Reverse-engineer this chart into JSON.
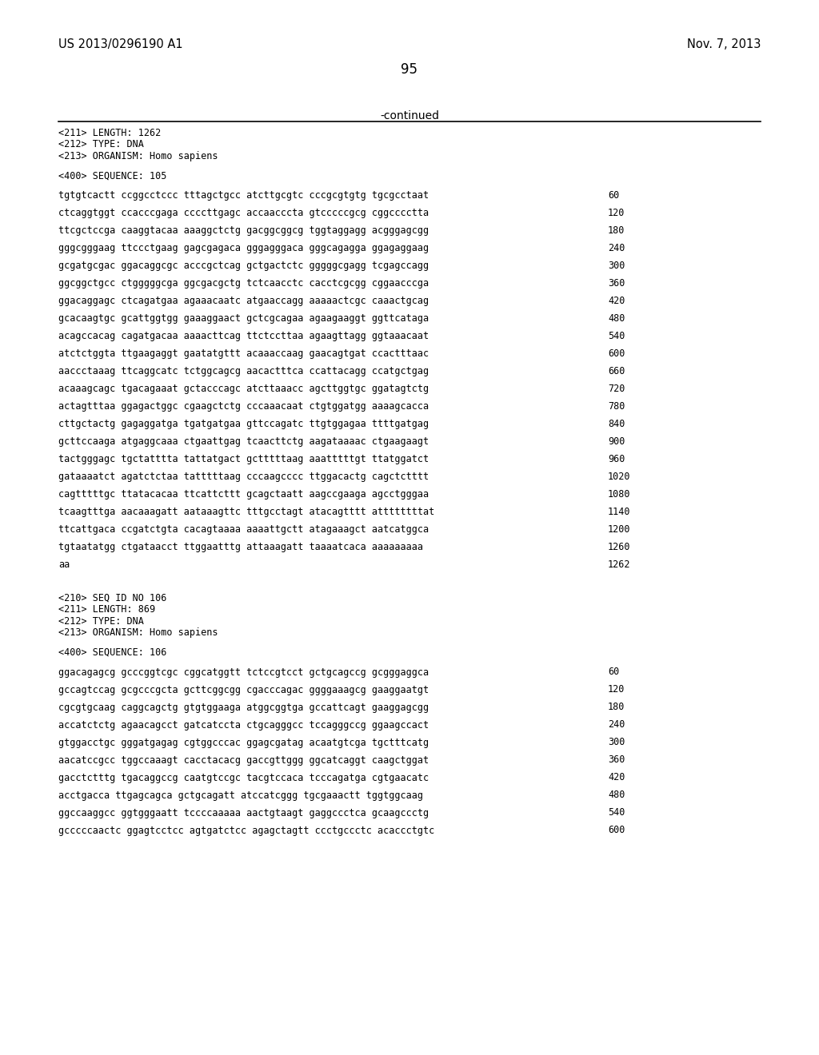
{
  "background_color": "#ffffff",
  "header_left": "US 2013/0296190 A1",
  "header_right": "Nov. 7, 2013",
  "page_number": "95",
  "continued_label": "-continued",
  "meta_lines_105": [
    "<211> LENGTH: 1262",
    "<212> TYPE: DNA",
    "<213> ORGANISM: Homo sapiens",
    "",
    "<400> SEQUENCE: 105"
  ],
  "sequence_lines_105": [
    [
      "tgtgtcactt ccggcctccc tttagctgcc atcttgcgtc cccgcgtgtg tgcgcctaat",
      "60"
    ],
    [
      "ctcaggtggt ccacccgaga ccccttgagc accaacccta gtcccccgcg cggcccctta",
      "120"
    ],
    [
      "ttcgctccga caaggtacaa aaaggctctg gacggcggcg tggtaggagg acgggagcgg",
      "180"
    ],
    [
      "gggcgggaag ttccctgaag gagcgagaca gggagggaca gggcagagga ggagaggaag",
      "240"
    ],
    [
      "gcgatgcgac ggacaggcgc acccgctcag gctgactctc gggggcgagg tcgagccagg",
      "300"
    ],
    [
      "ggcggctgcc ctgggggcga ggcgacgctg tctcaacctc cacctcgcgg cggaacccga",
      "360"
    ],
    [
      "ggacaggagc ctcagatgaa agaaacaatc atgaaccagg aaaaactcgc caaactgcag",
      "420"
    ],
    [
      "gcacaagtgc gcattggtgg gaaaggaact gctcgcagaa agaagaaggt ggttcataga",
      "480"
    ],
    [
      "acagccacag cagatgacaa aaaacttcag ttctccttaa agaagttagg ggtaaacaat",
      "540"
    ],
    [
      "atctctggta ttgaagaggt gaatatgttt acaaaccaag gaacagtgat ccactttaac",
      "600"
    ],
    [
      "aaccctaaag ttcaggcatc tctggcagcg aacactttca ccattacagg ccatgctgag",
      "660"
    ],
    [
      "acaaagcagc tgacagaaat gctacccagc atcttaaacc agcttggtgc ggatagtctg",
      "720"
    ],
    [
      "actagtttaa ggagactggc cgaagctctg cccaaacaat ctgtggatgg aaaagcacca",
      "780"
    ],
    [
      "cttgctactg gagaggatga tgatgatgaa gttccagatc ttgtggagaa ttttgatgag",
      "840"
    ],
    [
      "gcttccaaga atgaggcaaa ctgaattgag tcaacttctg aagataaaac ctgaagaagt",
      "900"
    ],
    [
      "tactgggagc tgctatttta tattatgact gctttttaag aaatttttgt ttatggatct",
      "960"
    ],
    [
      "gataaaatct agatctctaa tatttttaag cccaagcccc ttggacactg cagctctttt",
      "1020"
    ],
    [
      "cagtttttgc ttatacacaa ttcattcttt gcagctaatt aagccgaaga agcctgggaa",
      "1080"
    ],
    [
      "tcaagtttga aacaaagatt aataaagttc tttgcctagt atacagtttt attttttttat",
      "1140"
    ],
    [
      "ttcattgaca ccgatctgta cacagtaaaa aaaattgctt atagaaagct aatcatggca",
      "1200"
    ],
    [
      "tgtaatatgg ctgataacct ttggaatttg attaaagatt taaaatcaca aaaaaaaaa",
      "1260"
    ],
    [
      "aa",
      "1262"
    ]
  ],
  "meta_lines_106": [
    "<210> SEQ ID NO 106",
    "<211> LENGTH: 869",
    "<212> TYPE: DNA",
    "<213> ORGANISM: Homo sapiens",
    "",
    "<400> SEQUENCE: 106"
  ],
  "sequence_lines_106": [
    [
      "ggacagagcg gcccggtcgc cggcatggtt tctccgtcct gctgcagccg gcgggaggca",
      "60"
    ],
    [
      "gccagtccag gcgcccgcta gcttcggcgg cgacccagac ggggaaagcg gaaggaatgt",
      "120"
    ],
    [
      "cgcgtgcaag caggcagctg gtgtggaaga atggcggtga gccattcagt gaaggagcgg",
      "180"
    ],
    [
      "accatctctg agaacagcct gatcatccta ctgcagggcc tccagggccg ggaagccact",
      "240"
    ],
    [
      "gtggacctgc gggatgagag cgtggcccac ggagcgatag acaatgtcga tgctttcatg",
      "300"
    ],
    [
      "aacatccgcc tggccaaagt cacctacacg gaccgttggg ggcatcaggt caagctggat",
      "360"
    ],
    [
      "gacctctttg tgacaggccg caatgtccgc tacgtccaca tcccagatga cgtgaacatc",
      "420"
    ],
    [
      "acctgacca ttgagcagca gctgcagatt atccatcggg tgcgaaactt tggtggcaag",
      "480"
    ],
    [
      "ggccaaggcc ggtgggaatt tccccaaaaa aactgtaagt gaggccctca gcaagccctg",
      "540"
    ],
    [
      "gcccccaactc ggagtcctcc agtgatctcc agagctagtt ccctgccctc acaccctgtc",
      "600"
    ]
  ],
  "font_size_header": 10.5,
  "font_size_page": 12,
  "font_size_continued": 10,
  "font_size_meta": 8.5,
  "font_size_seq": 8.5,
  "mono_font": "monospace"
}
